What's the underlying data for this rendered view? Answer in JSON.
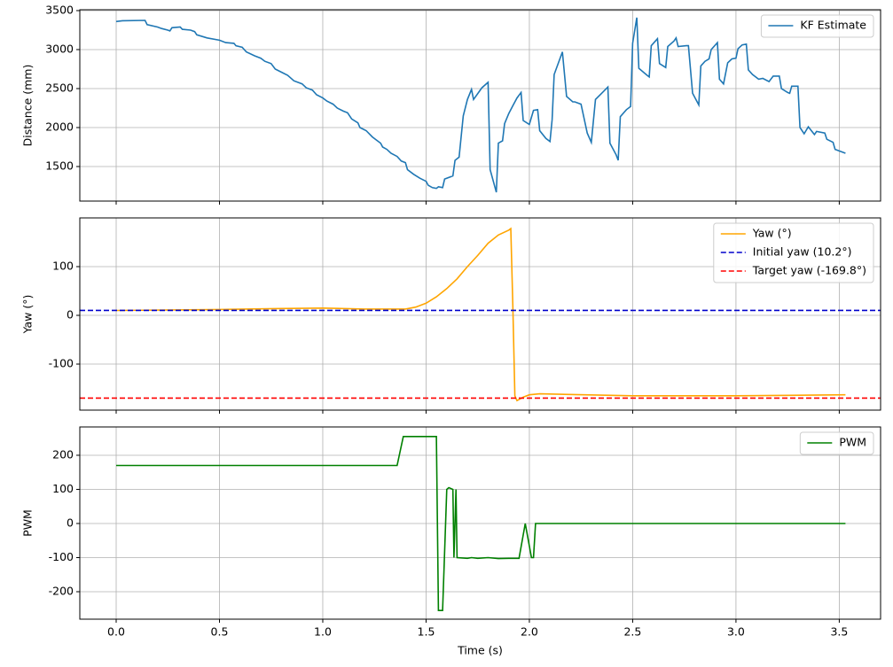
{
  "chart_data": [
    {
      "type": "line",
      "ylabel": "Distance (mm)",
      "xlim": [
        -0.176,
        3.7
      ],
      "ylim": [
        1057,
        3511
      ],
      "xticks": [
        0,
        0.5,
        1,
        1.5,
        2,
        2.5,
        3,
        3.5
      ],
      "yticks": [
        1500,
        2000,
        2500,
        3000,
        3500
      ],
      "grid": true,
      "legend": "upper right",
      "series": [
        {
          "name": "KF Estimate",
          "color": "#1f77b4",
          "x": [
            0,
            0.03,
            0.14,
            0.15,
            0.2,
            0.22,
            0.25,
            0.26,
            0.27,
            0.31,
            0.32,
            0.36,
            0.38,
            0.39,
            0.44,
            0.5,
            0.53,
            0.57,
            0.58,
            0.61,
            0.63,
            0.67,
            0.7,
            0.72,
            0.75,
            0.77,
            0.8,
            0.83,
            0.86,
            0.9,
            0.92,
            0.95,
            0.97,
            1.0,
            1.02,
            1.05,
            1.07,
            1.1,
            1.12,
            1.14,
            1.17,
            1.18,
            1.21,
            1.24,
            1.26,
            1.28,
            1.29,
            1.31,
            1.33,
            1.36,
            1.38,
            1.4,
            1.41,
            1.44,
            1.47,
            1.5,
            1.51,
            1.53,
            1.55,
            1.56,
            1.58,
            1.59,
            1.63,
            1.64,
            1.66,
            1.68,
            1.7,
            1.72,
            1.73,
            1.77,
            1.8,
            1.81,
            1.84,
            1.85,
            1.87,
            1.88,
            1.9,
            1.92,
            1.94,
            1.96,
            1.97,
            2.0,
            2.02,
            2.04,
            2.05,
            2.08,
            2.1,
            2.11,
            2.12,
            2.16,
            2.18,
            2.21,
            2.22,
            2.25,
            2.28,
            2.3,
            2.32,
            2.35,
            2.38,
            2.39,
            2.42,
            2.43,
            2.44,
            2.47,
            2.49,
            2.5,
            2.52,
            2.53,
            2.57,
            2.58,
            2.59,
            2.62,
            2.63,
            2.66,
            2.67,
            2.7,
            2.71,
            2.72,
            2.76,
            2.77,
            2.79,
            2.82,
            2.83,
            2.85,
            2.87,
            2.88,
            2.91,
            2.92,
            2.94,
            2.96,
            2.98,
            3.0,
            3.01,
            3.03,
            3.05,
            3.06,
            3.08,
            3.11,
            3.13,
            3.16,
            3.18,
            3.21,
            3.22,
            3.25,
            3.26,
            3.27,
            3.3,
            3.31,
            3.33,
            3.35,
            3.38,
            3.39,
            3.43,
            3.44,
            3.47,
            3.48,
            3.53
          ],
          "values": [
            3360,
            3370,
            3375,
            3320,
            3290,
            3270,
            3250,
            3240,
            3280,
            3290,
            3260,
            3250,
            3230,
            3190,
            3150,
            3120,
            3090,
            3080,
            3050,
            3030,
            2970,
            2920,
            2890,
            2850,
            2820,
            2750,
            2710,
            2670,
            2600,
            2560,
            2510,
            2480,
            2420,
            2380,
            2340,
            2300,
            2250,
            2210,
            2190,
            2110,
            2060,
            2000,
            1960,
            1880,
            1840,
            1800,
            1750,
            1720,
            1670,
            1630,
            1570,
            1550,
            1460,
            1400,
            1350,
            1310,
            1260,
            1230,
            1220,
            1240,
            1230,
            1340,
            1380,
            1580,
            1620,
            2150,
            2360,
            2490,
            2360,
            2510,
            2580,
            1460,
            1170,
            1800,
            1830,
            2050,
            2180,
            2280,
            2380,
            2450,
            2090,
            2040,
            2220,
            2230,
            1960,
            1860,
            1820,
            2100,
            2680,
            2970,
            2400,
            2330,
            2330,
            2300,
            1930,
            1810,
            2360,
            2440,
            2520,
            1800,
            1650,
            1580,
            2140,
            2230,
            2270,
            3080,
            3410,
            2760,
            2670,
            2650,
            3050,
            3140,
            2820,
            2770,
            3040,
            3110,
            3150,
            3040,
            3050,
            3050,
            2440,
            2290,
            2790,
            2850,
            2880,
            3000,
            3090,
            2620,
            2560,
            2830,
            2880,
            2890,
            3010,
            3060,
            3070,
            2740,
            2680,
            2620,
            2630,
            2590,
            2660,
            2660,
            2500,
            2450,
            2440,
            2530,
            2530,
            2000,
            1920,
            2010,
            1910,
            1950,
            1930,
            1850,
            1810,
            1720,
            1670
          ]
        }
      ]
    },
    {
      "type": "line",
      "ylabel": "Yaw (°)",
      "xlim": [
        -0.176,
        3.7
      ],
      "ylim": [
        -194.5,
        200
      ],
      "xticks": [
        0,
        0.5,
        1,
        1.5,
        2,
        2.5,
        3,
        3.5
      ],
      "yticks": [
        -100,
        0,
        100
      ],
      "grid": true,
      "legend": "upper right",
      "series": [
        {
          "name": "Yaw (°)",
          "color": "#ffa500",
          "x": [
            0,
            0.5,
            0.8,
            1.0,
            1.2,
            1.4,
            1.45,
            1.5,
            1.55,
            1.6,
            1.65,
            1.7,
            1.75,
            1.8,
            1.85,
            1.9,
            1.91,
            1.92,
            1.93,
            1.94,
            1.97,
            2.0,
            2.05,
            2.5,
            3.0,
            3.53
          ],
          "values": [
            10,
            12,
            14,
            15,
            13,
            13,
            17,
            25,
            38,
            55,
            75,
            100,
            123,
            148,
            165,
            175,
            178,
            20,
            -165,
            -175,
            -168,
            -163,
            -161,
            -165,
            -165,
            -163
          ]
        }
      ],
      "hlines": [
        {
          "name": "Initial yaw (10.2°)",
          "color": "#0000cc",
          "value": 10.2,
          "linestyle": "dashed"
        },
        {
          "name": "Target yaw (-169.8°)",
          "color": "#ff0000",
          "value": -169.8,
          "linestyle": "dashed"
        }
      ]
    },
    {
      "type": "line",
      "ylabel": "PWM",
      "xlabel": "Time (s)",
      "xlim": [
        -0.176,
        3.7
      ],
      "ylim": [
        -280.5,
        283
      ],
      "xticks": [
        {
          "value": 0,
          "label": "0.0"
        },
        {
          "value": 0.5,
          "label": "0.5"
        },
        {
          "value": 1,
          "label": "1.0"
        },
        {
          "value": 1.5,
          "label": "1.5"
        },
        {
          "value": 2,
          "label": "2.0"
        },
        {
          "value": 2.5,
          "label": "2.5"
        },
        {
          "value": 3,
          "label": "3.0"
        },
        {
          "value": 3.5,
          "label": "3.5"
        }
      ],
      "yticks": [
        -200,
        -100,
        0,
        100,
        200
      ],
      "grid": true,
      "legend": "upper right",
      "series": [
        {
          "name": "PWM",
          "color": "#008000",
          "x": [
            0,
            1.36,
            1.39,
            1.55,
            1.56,
            1.58,
            1.6,
            1.61,
            1.63,
            1.635,
            1.645,
            1.65,
            1.7,
            1.72,
            1.75,
            1.8,
            1.85,
            1.9,
            1.95,
            1.98,
            2.01,
            2.02,
            2.03,
            3.53
          ],
          "values": [
            170,
            170,
            255,
            255,
            -255,
            -255,
            100,
            105,
            100,
            -100,
            100,
            -100,
            -102,
            -100,
            -102,
            -100,
            -103,
            -102,
            -102,
            0,
            -100,
            -100,
            0,
            0
          ]
        }
      ]
    }
  ]
}
